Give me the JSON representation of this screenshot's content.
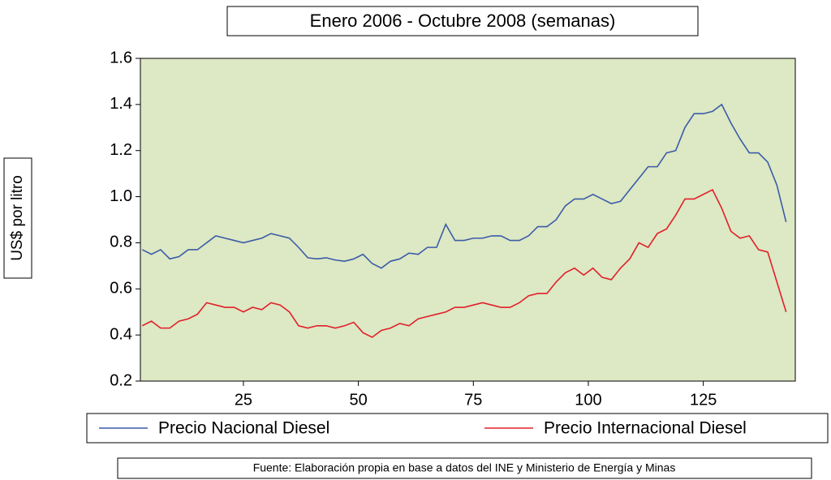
{
  "chart_data": {
    "type": "line",
    "title": "Enero 2006 - Octubre 2008 (semanas)",
    "ylabel": "US$ por litro",
    "source": "Fuente: Elaboración propia en base a datos del INE y Ministerio de Energía y Minas",
    "x": [
      3,
      5,
      7,
      9,
      11,
      13,
      15,
      17,
      19,
      21,
      23,
      25,
      27,
      29,
      31,
      33,
      35,
      37,
      39,
      41,
      43,
      45,
      47,
      49,
      51,
      53,
      55,
      57,
      59,
      61,
      63,
      65,
      67,
      69,
      71,
      73,
      75,
      77,
      79,
      81,
      83,
      85,
      87,
      89,
      91,
      93,
      95,
      97,
      99,
      101,
      103,
      105,
      107,
      109,
      111,
      113,
      115,
      117,
      119,
      121,
      123,
      125,
      127,
      129,
      131,
      133,
      135,
      137,
      139,
      141,
      143
    ],
    "series": [
      {
        "name": "Precio Nacional Diesel",
        "color": "#3a5ca8",
        "values": [
          0.77,
          0.75,
          0.77,
          0.73,
          0.74,
          0.77,
          0.77,
          0.8,
          0.83,
          0.82,
          0.81,
          0.8,
          0.81,
          0.82,
          0.84,
          0.83,
          0.82,
          0.78,
          0.735,
          0.73,
          0.735,
          0.725,
          0.72,
          0.73,
          0.75,
          0.71,
          0.69,
          0.72,
          0.73,
          0.755,
          0.75,
          0.78,
          0.78,
          0.88,
          0.81,
          0.81,
          0.82,
          0.82,
          0.83,
          0.83,
          0.81,
          0.81,
          0.83,
          0.87,
          0.87,
          0.9,
          0.96,
          0.99,
          0.99,
          1.01,
          0.99,
          0.97,
          0.98,
          1.03,
          1.08,
          1.13,
          1.13,
          1.19,
          1.2,
          1.3,
          1.36,
          1.36,
          1.37,
          1.4,
          1.32,
          1.25,
          1.19,
          1.19,
          1.15,
          1.05,
          0.89
        ]
      },
      {
        "name": "Precio Internacional Diesel",
        "color": "#e0202a",
        "values": [
          0.44,
          0.46,
          0.43,
          0.43,
          0.46,
          0.47,
          0.49,
          0.54,
          0.53,
          0.52,
          0.52,
          0.5,
          0.52,
          0.51,
          0.54,
          0.53,
          0.5,
          0.44,
          0.43,
          0.44,
          0.44,
          0.43,
          0.44,
          0.455,
          0.41,
          0.39,
          0.42,
          0.43,
          0.45,
          0.44,
          0.47,
          0.48,
          0.49,
          0.5,
          0.52,
          0.52,
          0.53,
          0.54,
          0.53,
          0.52,
          0.52,
          0.54,
          0.57,
          0.58,
          0.58,
          0.63,
          0.67,
          0.69,
          0.66,
          0.69,
          0.65,
          0.64,
          0.69,
          0.73,
          0.8,
          0.78,
          0.84,
          0.86,
          0.92,
          0.99,
          0.99,
          1.01,
          1.03,
          0.95,
          0.85,
          0.82,
          0.83,
          0.77,
          0.76,
          0.63,
          0.5
        ]
      }
    ],
    "xlim": [
      2.6,
      145
    ],
    "xticks": [
      25,
      50,
      75,
      100,
      125
    ],
    "ylim": [
      0.2,
      1.6
    ],
    "yticks": [
      0.2,
      0.4,
      0.6,
      0.8,
      {
        "value": 1,
        "label": "1.0"
      },
      1.2,
      1.4,
      1.6
    ],
    "background": "#dde8c4"
  }
}
